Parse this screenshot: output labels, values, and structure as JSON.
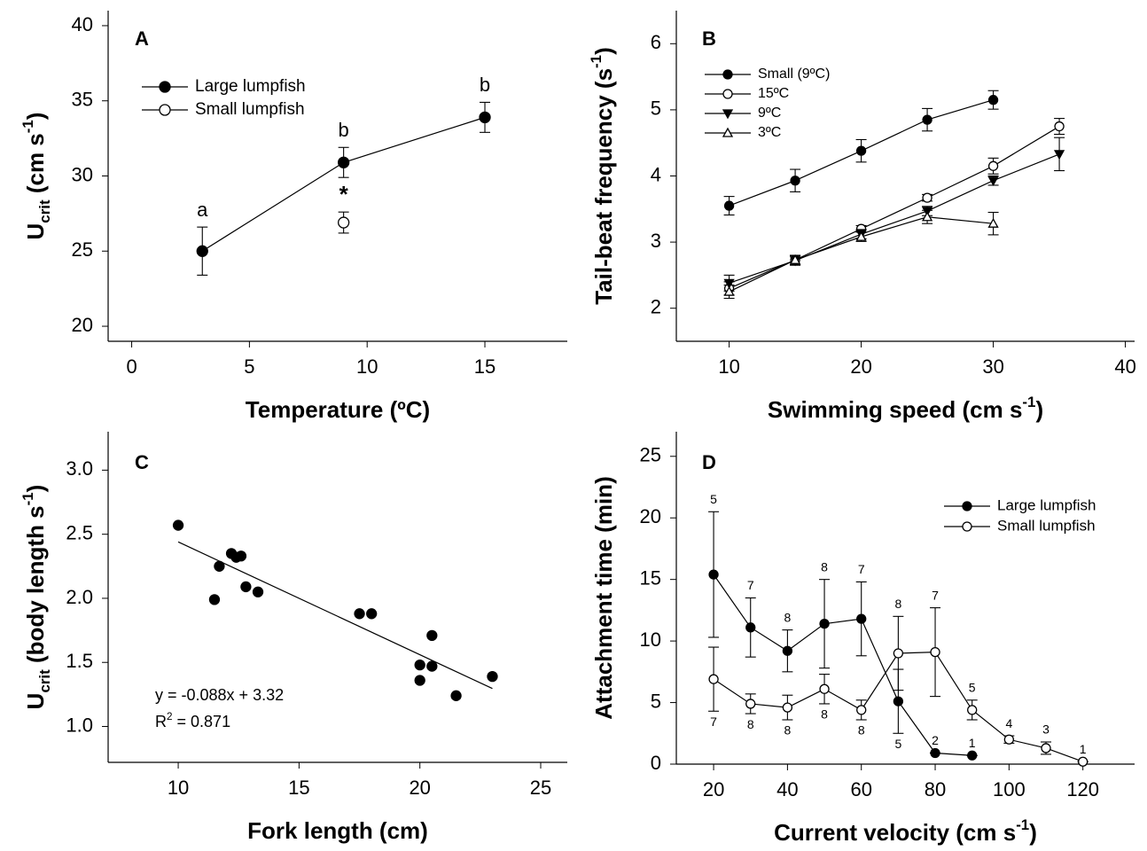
{
  "chart_data": [
    {
      "type": "line",
      "panel": "A",
      "x_label": [
        {
          "text": "Temperature (ºC)"
        }
      ],
      "y_label": [
        {
          "text": "U"
        },
        {
          "text": "crit",
          "shift": "sub"
        },
        {
          "text": " (cm s"
        },
        {
          "text": "-1",
          "shift": "sup"
        },
        {
          "text": ")"
        }
      ],
      "xlim": [
        -1,
        18.5
      ],
      "xticks": [
        0,
        5,
        10,
        15
      ],
      "ylim": [
        19,
        41
      ],
      "yticks": [
        20,
        25,
        30,
        35,
        40
      ],
      "series": [
        {
          "name": "Large lumpfish",
          "color": "#000000",
          "marker": "circle-filled",
          "x": [
            3,
            9,
            15
          ],
          "values": [
            25.0,
            30.9,
            33.9
          ],
          "errors": [
            1.6,
            1.0,
            1.0
          ],
          "labels": [
            "a",
            "b",
            "b"
          ]
        },
        {
          "name": "Small lumpfish",
          "color": "#000000",
          "marker": "circle-open",
          "x": [
            9
          ],
          "values": [
            26.9
          ],
          "errors": [
            0.7
          ],
          "labels": [
            "*"
          ]
        }
      ]
    },
    {
      "type": "line",
      "panel": "B",
      "x_label": [
        {
          "text": "Swimming speed (cm s"
        },
        {
          "text": "-1",
          "shift": "sup"
        },
        {
          "text": ")"
        }
      ],
      "y_label": [
        {
          "text": "Tail-beat frequency (s"
        },
        {
          "text": "-1",
          "shift": "sup"
        },
        {
          "text": ")"
        }
      ],
      "xlim": [
        6,
        40.7
      ],
      "xticks": [
        10,
        20,
        30,
        40
      ],
      "ylim": [
        1.5,
        6.5
      ],
      "yticks": [
        2,
        3,
        4,
        5,
        6
      ],
      "series": [
        {
          "name": "Small (9ºC)",
          "color": "#000000",
          "marker": "circle-filled",
          "x": [
            10,
            15,
            20,
            25,
            30
          ],
          "values": [
            3.55,
            3.93,
            4.38,
            4.85,
            5.15
          ],
          "errors": [
            0.14,
            0.17,
            0.17,
            0.17,
            0.14
          ]
        },
        {
          "name": "15ºC",
          "color": "#000000",
          "marker": "circle-open",
          "x": [
            10,
            15,
            20,
            25,
            30,
            35
          ],
          "values": [
            2.3,
            2.73,
            3.2,
            3.67,
            4.15,
            4.75
          ],
          "errors": [
            0.1,
            0.07,
            0.05,
            0.05,
            0.12,
            0.12
          ]
        },
        {
          "name": "9ºC",
          "color": "#000000",
          "marker": "triangle-down-filled",
          "x": [
            10,
            15,
            20,
            25,
            30,
            35
          ],
          "values": [
            2.38,
            2.72,
            3.12,
            3.47,
            3.93,
            4.33
          ],
          "errors": [
            0.12,
            0.07,
            0.07,
            0.07,
            0.07,
            0.25
          ]
        },
        {
          "name": "3ºC",
          "color": "#000000",
          "marker": "triangle-up-open",
          "x": [
            10,
            15,
            20,
            25,
            30
          ],
          "values": [
            2.25,
            2.73,
            3.08,
            3.38,
            3.28
          ],
          "errors": [
            0.1,
            0.07,
            0.07,
            0.1,
            0.17
          ]
        }
      ]
    },
    {
      "type": "scatter",
      "panel": "C",
      "x_label": [
        {
          "text": "Fork length (cm)"
        }
      ],
      "y_label": [
        {
          "text": "U"
        },
        {
          "text": "crit",
          "shift": "sub"
        },
        {
          "text": " (body length s"
        },
        {
          "text": "-1",
          "shift": "sup"
        },
        {
          "text": ")"
        }
      ],
      "xlim": [
        7.1,
        26.1
      ],
      "xticks": [
        10,
        15,
        20,
        25
      ],
      "ylim": [
        0.72,
        3.3
      ],
      "yticks": [
        {
          "value": 1,
          "label": "1.0"
        },
        1.5,
        {
          "value": 2,
          "label": "2.0"
        },
        2.5,
        {
          "value": 3,
          "label": "3.0"
        }
      ],
      "series": [
        {
          "color": "#000000",
          "marker": "circle-filled",
          "x": [
            10,
            11.5,
            11.7,
            12.2,
            12.4,
            12.6,
            12.8,
            13.3,
            17.5,
            18,
            20,
            20,
            20.5,
            20.5,
            21.5,
            23
          ],
          "values": [
            2.57,
            1.99,
            2.25,
            2.35,
            2.32,
            2.33,
            2.09,
            2.05,
            1.88,
            1.88,
            1.48,
            1.36,
            1.47,
            1.71,
            1.24,
            1.39
          ]
        }
      ],
      "fit": {
        "slope": -0.088,
        "intercept": 3.32,
        "x_range": [
          10,
          23
        ]
      },
      "annotations": [
        [
          {
            "text": "y = -0.088x + 3.32"
          }
        ],
        [
          {
            "text": "R"
          },
          {
            "text": "2",
            "shift": "sup"
          },
          {
            "text": " = 0.871"
          }
        ]
      ]
    },
    {
      "type": "line",
      "panel": "D",
      "x_label": [
        {
          "text": "Current velocity (cm s"
        },
        {
          "text": "-1",
          "shift": "sup"
        },
        {
          "text": ")"
        }
      ],
      "y_label": [
        {
          "text": "Attachment  time (min)"
        }
      ],
      "xlim": [
        9.9,
        134
      ],
      "xticks": [
        20,
        40,
        60,
        80,
        100,
        120
      ],
      "ylim": [
        0,
        27
      ],
      "yticks": [
        0,
        5,
        10,
        15,
        20,
        25
      ],
      "series": [
        {
          "name": "Large lumpfish",
          "color": "#000000",
          "marker": "circle-filled",
          "x": [
            20,
            30,
            40,
            50,
            60,
            70,
            80,
            90
          ],
          "values": [
            15.4,
            11.1,
            9.2,
            11.4,
            11.8,
            5.1,
            0.9,
            0.7
          ],
          "errors": [
            5.1,
            2.4,
            1.7,
            3.6,
            3.0,
            2.6,
            0,
            0
          ],
          "n_labels": [
            "5",
            "7",
            "8",
            "8",
            "7",
            "5",
            "2",
            "1"
          ]
        },
        {
          "name": "Small lumpfish",
          "color": "#000000",
          "marker": "circle-open",
          "x": [
            20,
            30,
            40,
            50,
            60,
            70,
            80,
            90,
            100,
            110,
            120
          ],
          "values": [
            6.9,
            4.9,
            4.6,
            6.1,
            4.4,
            9.0,
            9.1,
            4.4,
            2.0,
            1.3,
            0.2
          ],
          "errors": [
            2.6,
            0.8,
            1.0,
            1.2,
            0.8,
            3.0,
            3.6,
            0.8,
            0.3,
            0.5,
            0
          ],
          "n_labels": [
            "7",
            "8",
            "8",
            "8",
            "8",
            "8",
            "7",
            "5",
            "4",
            "3",
            "1"
          ]
        }
      ]
    }
  ]
}
